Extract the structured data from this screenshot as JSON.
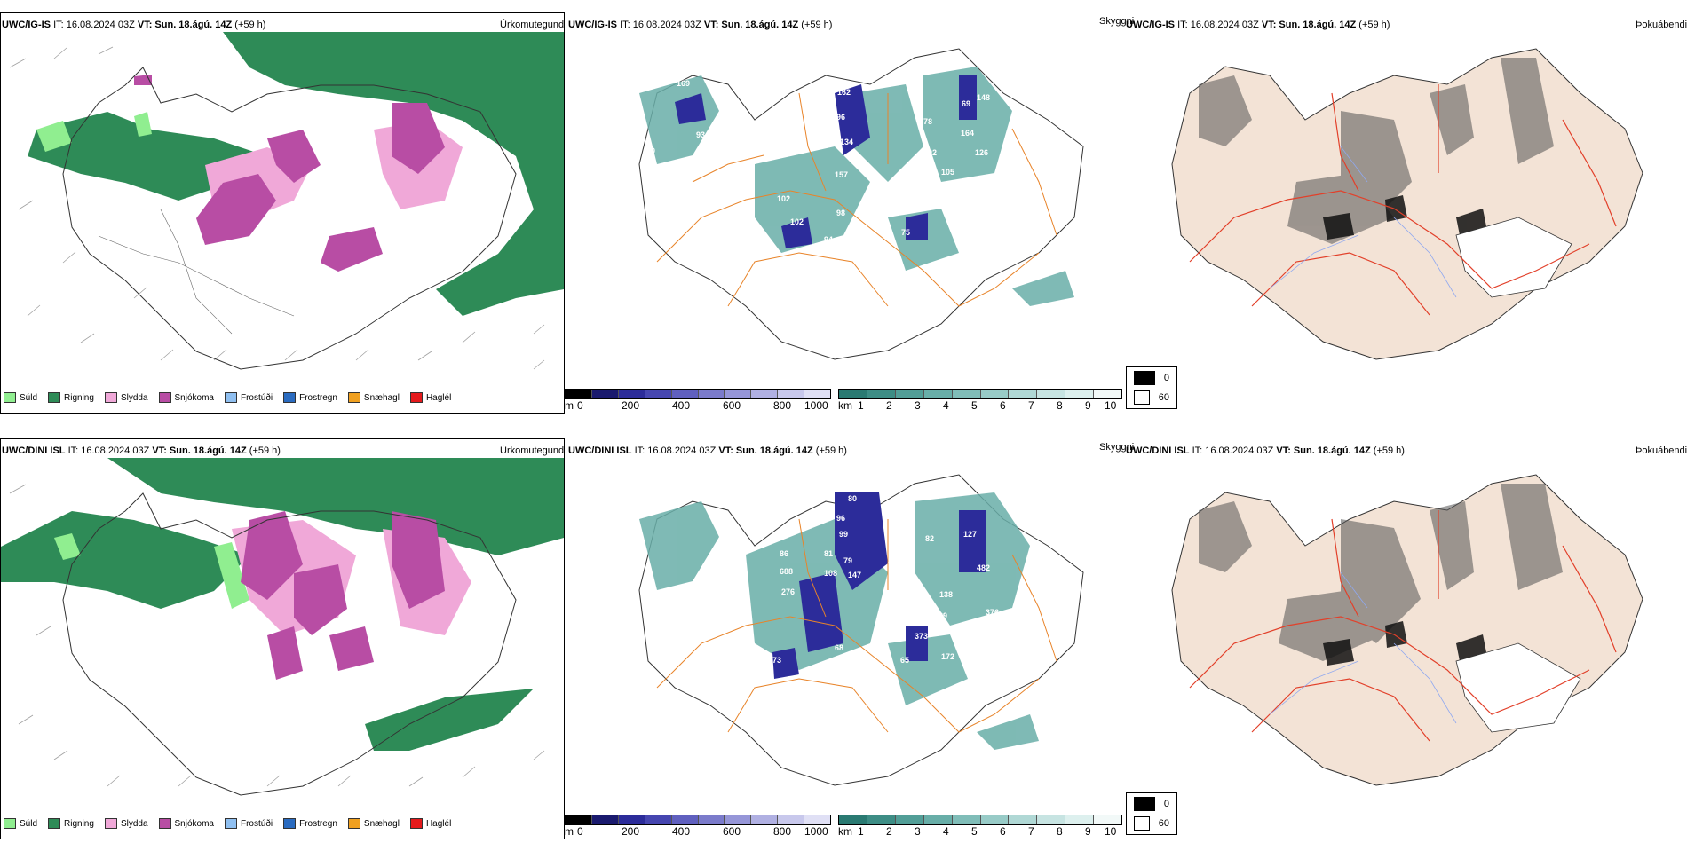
{
  "panels": [
    {
      "id": "p1",
      "model": "UWC/IG-IS",
      "it": "IT: 16.08.2024 03Z",
      "vt": "VT: Sun. 18.ágú. 14Z",
      "lead": "(+59 h)",
      "field": "Úrkomutegund"
    },
    {
      "id": "p2",
      "model": "UWC/IG-IS",
      "it": "IT: 16.08.2024 03Z",
      "vt": "VT: Sun. 18.ágú. 14Z",
      "lead": "(+59 h)",
      "field": "Skyggni"
    },
    {
      "id": "p3",
      "model": "UWC/IG-IS",
      "it": "IT: 16.08.2024 03Z",
      "vt": "VT: Sun. 18.ágú. 14Z",
      "lead": "(+59 h)",
      "field": "Þokuábendi"
    },
    {
      "id": "p4",
      "model": "UWC/DINI ISL",
      "it": "IT: 16.08.2024 03Z",
      "vt": "VT: Sun. 18.ágú. 14Z",
      "lead": "(+59 h)",
      "field": "Úrkomutegund"
    },
    {
      "id": "p5",
      "model": "UWC/DINI ISL",
      "it": "IT: 16.08.2024 03Z",
      "vt": "VT: Sun. 18.ágú. 14Z",
      "lead": "(+59 h)",
      "field": "Skyggni"
    },
    {
      "id": "p6",
      "model": "UWC/DINI ISL",
      "it": "IT: 16.08.2024 03Z",
      "vt": "VT: Sun. 18.ágú. 14Z",
      "lead": "(+59 h)",
      "field": "Þokuábendi"
    }
  ],
  "precip_legend": [
    {
      "label": "Súld",
      "color": "#90ee90"
    },
    {
      "label": "Rigning",
      "color": "#2e8b57"
    },
    {
      "label": "Slydda",
      "color": "#f0a8d8"
    },
    {
      "label": "Snjókoma",
      "color": "#b84da4"
    },
    {
      "label": "Frostúði",
      "color": "#8fbff0"
    },
    {
      "label": "Frostregn",
      "color": "#2a6bc0"
    },
    {
      "label": "Snæhagl",
      "color": "#f0a020"
    },
    {
      "label": "Haglél",
      "color": "#e41a1c"
    }
  ],
  "vis_scale": {
    "m_unit": "m",
    "m_ticks": [
      "0",
      "200",
      "400",
      "600",
      "800",
      "1000"
    ],
    "m_colors": [
      "#000000",
      "#1a1a6e",
      "#2c2c9a",
      "#4646b0",
      "#6060bf",
      "#7b7bcb",
      "#9696d8",
      "#b0b0e2",
      "#c8c8ec",
      "#e0e0f5"
    ],
    "km_unit": "km",
    "km_ticks": [
      "1",
      "2",
      "3",
      "4",
      "5",
      "6",
      "7",
      "8",
      "9",
      "10"
    ],
    "km_colors": [
      "#2a7a72",
      "#3d8d85",
      "#529e97",
      "#68aea8",
      "#80bdb8",
      "#98cbc7",
      "#b0d8d5",
      "#c7e4e2",
      "#ddf0ee",
      "#f2f9f8"
    ]
  },
  "fog_key": [
    {
      "label": "0",
      "color": "#000000"
    },
    {
      "label": "60",
      "color": "#ffffff"
    }
  ],
  "vis_labels_top": [
    "169",
    "93",
    "80",
    "162",
    "96",
    "134",
    "157",
    "102",
    "102",
    "98",
    "94",
    "71",
    "75",
    "92",
    "55",
    "69",
    "148",
    "164",
    "105",
    "126",
    "78",
    "89",
    "18"
  ],
  "vis_labels_bottom": [
    "80",
    "96",
    "99",
    "81",
    "79",
    "108",
    "147",
    "37",
    "86",
    "688",
    "276",
    "73",
    "68",
    "65",
    "172",
    "373",
    "189",
    "138",
    "376",
    "127",
    "482",
    "82",
    "10"
  ]
}
